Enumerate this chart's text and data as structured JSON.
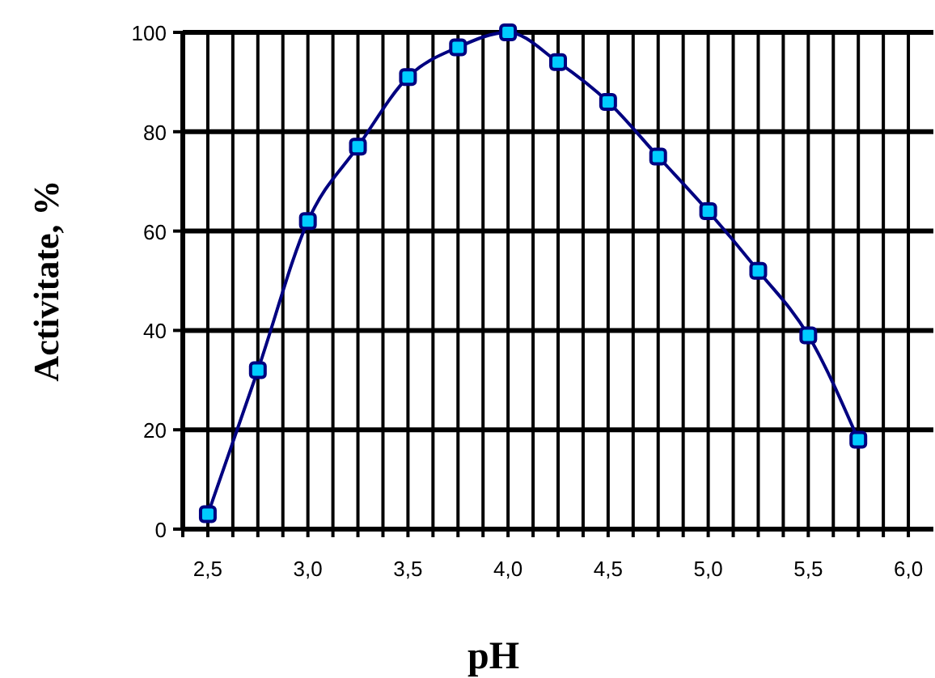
{
  "chart_data": {
    "type": "line",
    "xlabel": "pH",
    "ylabel": "Activitate, %",
    "x": [
      2.5,
      2.75,
      3.0,
      3.25,
      3.5,
      3.75,
      4.0,
      4.25,
      4.5,
      4.75,
      5.0,
      5.25,
      5.5,
      5.75
    ],
    "series": [
      {
        "color": "#000080",
        "values": [
          3,
          32,
          62,
          77,
          91,
          97,
          100,
          94,
          86,
          75,
          64,
          52,
          39,
          18
        ]
      }
    ],
    "xlim": [
      2.375,
      6.125
    ],
    "xticks": [
      {
        "value": 2.375,
        "label": null
      },
      {
        "value": 2.5,
        "label": "2,5"
      },
      {
        "value": 2.625,
        "label": null
      },
      {
        "value": 2.75,
        "label": null
      },
      {
        "value": 2.875,
        "label": null
      },
      {
        "value": 3.0,
        "label": "3,0"
      },
      {
        "value": 3.125,
        "label": null
      },
      {
        "value": 3.25,
        "label": null
      },
      {
        "value": 3.375,
        "label": null
      },
      {
        "value": 3.5,
        "label": "3,5"
      },
      {
        "value": 3.625,
        "label": null
      },
      {
        "value": 3.75,
        "label": null
      },
      {
        "value": 3.875,
        "label": null
      },
      {
        "value": 4.0,
        "label": "4,0"
      },
      {
        "value": 4.125,
        "label": null
      },
      {
        "value": 4.25,
        "label": null
      },
      {
        "value": 4.375,
        "label": null
      },
      {
        "value": 4.5,
        "label": "4,5"
      },
      {
        "value": 4.625,
        "label": null
      },
      {
        "value": 4.75,
        "label": null
      },
      {
        "value": 4.875,
        "label": null
      },
      {
        "value": 5.0,
        "label": "5,0"
      },
      {
        "value": 5.125,
        "label": null
      },
      {
        "value": 5.25,
        "label": null
      },
      {
        "value": 5.375,
        "label": null
      },
      {
        "value": 5.5,
        "label": "5,5"
      },
      {
        "value": 5.625,
        "label": null
      },
      {
        "value": 5.75,
        "label": null
      },
      {
        "value": 5.875,
        "label": null
      },
      {
        "value": 6.0,
        "label": "6,0"
      }
    ],
    "ylim": [
      0,
      100
    ],
    "yticks": [
      0,
      20,
      40,
      60,
      80,
      100
    ],
    "grid": true,
    "marker": "square",
    "line_style": "solid"
  }
}
